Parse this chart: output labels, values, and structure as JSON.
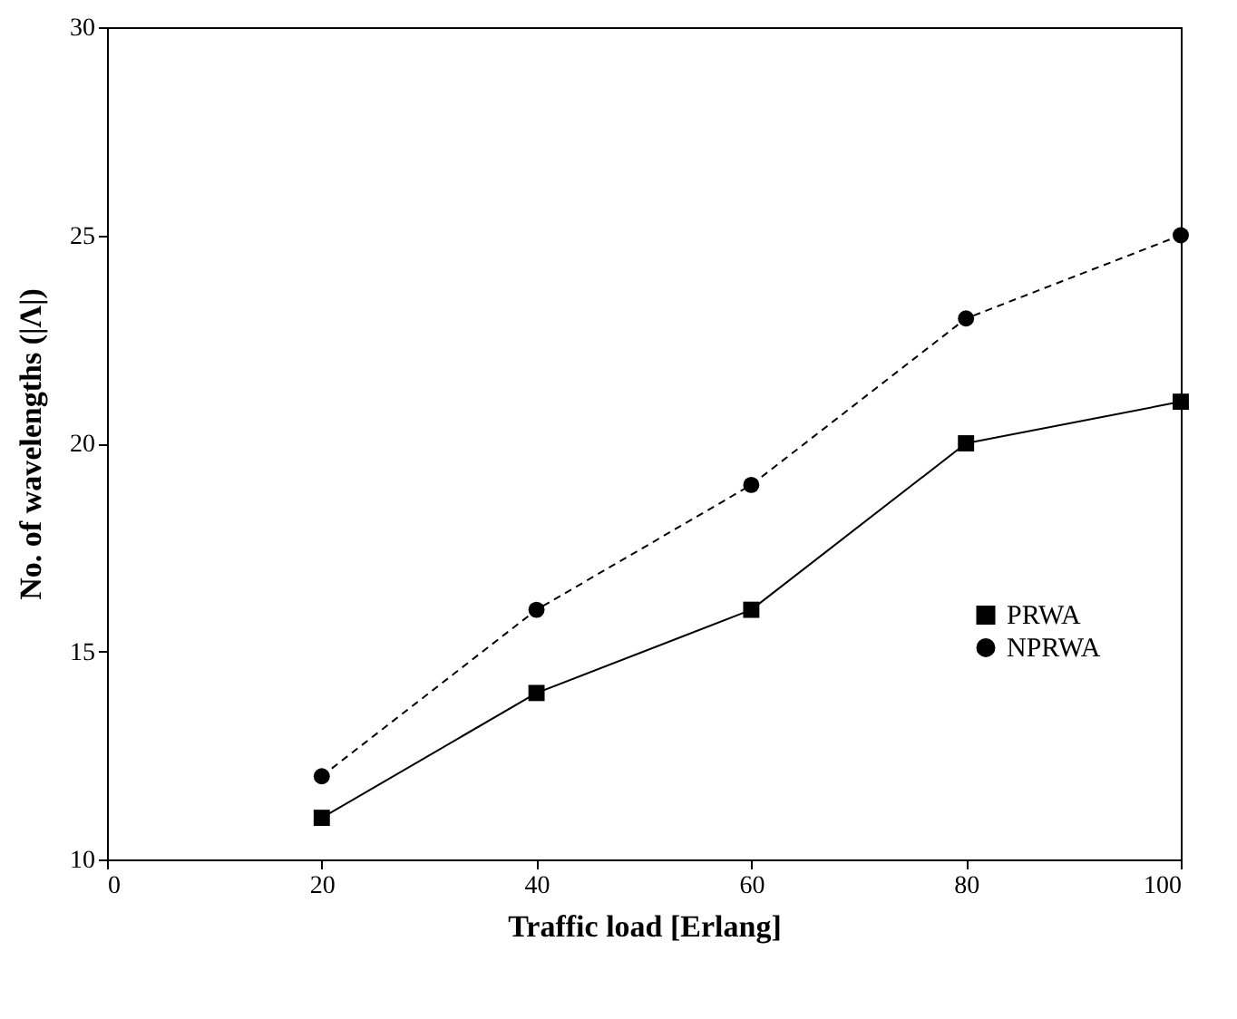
{
  "chart_data": {
    "type": "line",
    "xlabel": "Traffic load [Erlang]",
    "ylabel": "No. of wavelengths (|Λ|)",
    "x": [
      20,
      40,
      60,
      80,
      100
    ],
    "series": [
      {
        "name": "PRWA",
        "color": "#000000",
        "values": [
          11,
          14,
          16,
          20,
          21
        ],
        "marker": "square",
        "line_style": "solid"
      },
      {
        "name": "NPRWA",
        "color": "#000000",
        "values": [
          12,
          16,
          19,
          23,
          25
        ],
        "marker": "circle",
        "line_style": "dashed"
      }
    ],
    "xlim": [
      0,
      100
    ],
    "xticks": [
      0,
      20,
      40,
      60,
      80,
      100
    ],
    "ylim": [
      10,
      30
    ],
    "yticks": [
      10,
      15,
      20,
      25,
      30
    ],
    "legend": "right",
    "grid": false
  }
}
